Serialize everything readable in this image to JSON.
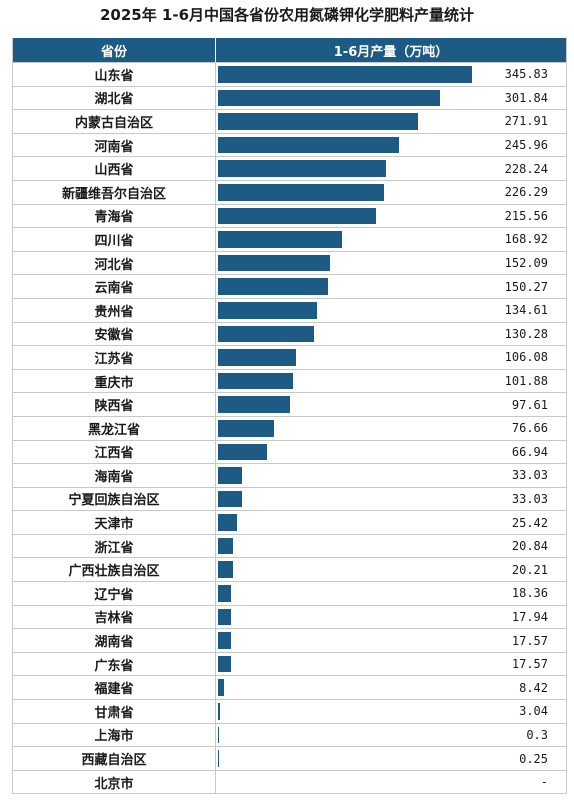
{
  "title": "2025年 1-6月中国各省份农用氮磷钾化学肥料产量统计",
  "header": {
    "col_province": "省份",
    "col_output": "1-6月产量（万吨）"
  },
  "colors": {
    "bar": "#1d5b85",
    "header_bg": "#1d5b85"
  },
  "chart_data": {
    "type": "bar",
    "orientation": "horizontal",
    "title": "2025年 1-6月中国各省份农用氮磷钾化学肥料产量统计",
    "categories": [
      "山东省",
      "湖北省",
      "内蒙古自治区",
      "河南省",
      "山西省",
      "新疆维吾尔自治区",
      "青海省",
      "四川省",
      "河北省",
      "云南省",
      "贵州省",
      "安徽省",
      "江苏省",
      "重庆市",
      "陕西省",
      "黑龙江省",
      "江西省",
      "海南省",
      "宁夏回族自治区",
      "天津市",
      "浙江省",
      "广西壮族自治区",
      "辽宁省",
      "吉林省",
      "湖南省",
      "广东省",
      "福建省",
      "甘肃省",
      "上海市",
      "西藏自治区",
      "北京市"
    ],
    "values": [
      345.83,
      301.84,
      271.91,
      245.96,
      228.24,
      226.29,
      215.56,
      168.92,
      152.09,
      150.27,
      134.61,
      130.28,
      106.08,
      101.88,
      97.61,
      76.66,
      66.94,
      33.03,
      33.03,
      25.42,
      20.84,
      20.21,
      18.36,
      17.94,
      17.57,
      17.57,
      8.42,
      3.04,
      0.3,
      0.25,
      null
    ],
    "labels": [
      "345.83",
      "301.84",
      "271.91",
      "245.96",
      "228.24",
      "226.29",
      "215.56",
      "168.92",
      "152.09",
      "150.27",
      "134.61",
      "130.28",
      "106.08",
      "101.88",
      "97.61",
      "76.66",
      "66.94",
      "33.03",
      "33.03",
      "25.42",
      "20.84",
      "20.21",
      "18.36",
      "17.94",
      "17.57",
      "17.57",
      "8.42",
      "3.04",
      "0.3",
      "0.25",
      "-"
    ],
    "xlim": [
      0,
      345.83
    ]
  }
}
